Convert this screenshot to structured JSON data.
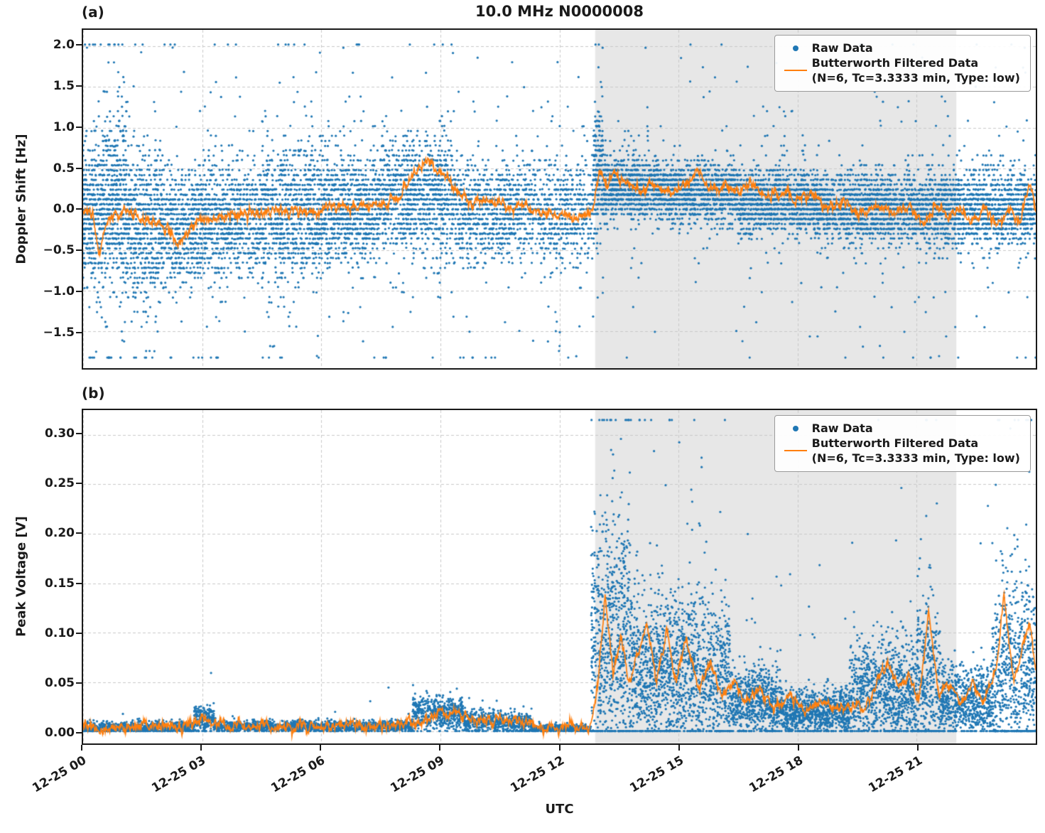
{
  "title": "10.0 MHz N0000008",
  "xlabel": "UTC",
  "panels": [
    {
      "label": "(a)",
      "ylabel": "Doppler Shift [Hz]"
    },
    {
      "label": "(b)",
      "ylabel": "Peak Voltage [V]"
    }
  ],
  "legend": {
    "raw": "Raw Data",
    "filtered1": "Butterworth Filtered Data",
    "filtered2": "(N=6, Tc=3.3333 min, Type: low)"
  },
  "colors": {
    "raw": "#1f77b4",
    "filtered": "#ff7f0e",
    "shade": "#e7e7e7",
    "grid": "#c9c9c9",
    "axis": "#1a1a1a"
  },
  "chart_data": [
    {
      "id": "doppler",
      "type": "scatter",
      "title": "10.0 MHz N0000008",
      "ylabel": "Doppler Shift [Hz]",
      "xlabel": "UTC",
      "x_range_hours": [
        0,
        24
      ],
      "x_tick_hours": [
        0,
        3,
        6,
        9,
        12,
        15,
        18,
        21
      ],
      "x_tick_labels": [
        "12-25 00",
        "12-25 03",
        "12-25 06",
        "12-25 09",
        "12-25 12",
        "12-25 15",
        "12-25 18",
        "12-25 21"
      ],
      "show_x_tick_labels": false,
      "ylim": [
        -1.95,
        2.2
      ],
      "y_ticks": [
        2.0,
        1.5,
        1.0,
        0.5,
        0.0,
        -0.5,
        -1.0,
        -1.5
      ],
      "y_tick_labels": [
        "2.0",
        "1.5",
        "1.0",
        "0.5",
        "0.0",
        "−0.5",
        "−1.0",
        "−1.5"
      ],
      "shaded_region_hours": [
        12.9,
        22.0
      ],
      "grid": true,
      "legend_position": "upper right",
      "seed": 1234567,
      "clamp": [
        -1.82,
        2.02
      ],
      "quantize": 0.06,
      "filtered_jitter": 0.05,
      "raw_segments": [
        {
          "t0": 0.0,
          "t1": 0.5,
          "n": 400,
          "mean": -0.1,
          "std": 0.45,
          "tailP": 0.08,
          "tailScale": 1.0
        },
        {
          "t0": 0.5,
          "t1": 1.1,
          "n": 500,
          "mean": 0.1,
          "std": 0.5,
          "tailP": 0.1,
          "tailScale": 1.0
        },
        {
          "t0": 1.1,
          "t1": 2.0,
          "n": 600,
          "mean": -0.2,
          "std": 0.45,
          "tailP": 0.08,
          "tailScale": 0.9
        },
        {
          "t0": 2.0,
          "t1": 3.0,
          "n": 600,
          "mean": -0.2,
          "std": 0.35,
          "tailP": 0.05,
          "tailScale": 0.8
        },
        {
          "t0": 3.0,
          "t1": 4.5,
          "n": 800,
          "mean": -0.1,
          "std": 0.35,
          "tailP": 0.05,
          "tailScale": 0.7
        },
        {
          "t0": 4.5,
          "t1": 6.0,
          "n": 900,
          "mean": -0.05,
          "std": 0.4,
          "tailP": 0.06,
          "tailScale": 0.8
        },
        {
          "t0": 6.0,
          "t1": 7.5,
          "n": 900,
          "mean": 0.0,
          "std": 0.35,
          "tailP": 0.05,
          "tailScale": 0.7
        },
        {
          "t0": 7.5,
          "t1": 9.3,
          "n": 1000,
          "mean": 0.15,
          "std": 0.35,
          "tailP": 0.05,
          "tailScale": 0.6
        },
        {
          "t0": 9.3,
          "t1": 11.0,
          "n": 800,
          "mean": 0.0,
          "std": 0.3,
          "tailP": 0.06,
          "tailScale": 0.7
        },
        {
          "t0": 11.0,
          "t1": 12.85,
          "n": 700,
          "mean": -0.05,
          "std": 0.3,
          "tailP": 0.06,
          "tailScale": 0.6
        },
        {
          "t0": 12.85,
          "t1": 13.1,
          "n": 220,
          "mean": 0.5,
          "std": 0.4,
          "tailP": 0.1,
          "tailScale": 0.6
        },
        {
          "t0": 13.1,
          "t1": 14.5,
          "n": 900,
          "mean": 0.25,
          "std": 0.18,
          "tailP": 0.04,
          "tailScale": 0.5
        },
        {
          "t0": 14.5,
          "t1": 16.5,
          "n": 1200,
          "mean": 0.2,
          "std": 0.18,
          "tailP": 0.04,
          "tailScale": 0.5
        },
        {
          "t0": 16.5,
          "t1": 18.5,
          "n": 1200,
          "mean": 0.1,
          "std": 0.2,
          "tailP": 0.04,
          "tailScale": 0.5
        },
        {
          "t0": 18.5,
          "t1": 20.5,
          "n": 1200,
          "mean": 0.02,
          "std": 0.2,
          "tailP": 0.04,
          "tailScale": 0.5
        },
        {
          "t0": 20.5,
          "t1": 24.0,
          "n": 2100,
          "mean": 0.0,
          "std": 0.22,
          "tailP": 0.05,
          "tailScale": 0.6
        }
      ],
      "filtered_keypoints": [
        [
          0,
          0.0
        ],
        [
          0.25,
          -0.1
        ],
        [
          0.4,
          -0.55
        ],
        [
          0.6,
          -0.15
        ],
        [
          1.0,
          -0.05
        ],
        [
          1.5,
          -0.1
        ],
        [
          2.0,
          -0.2
        ],
        [
          2.4,
          -0.45
        ],
        [
          2.7,
          -0.25
        ],
        [
          3.0,
          -0.15
        ],
        [
          3.5,
          -0.1
        ],
        [
          4.0,
          -0.05
        ],
        [
          4.5,
          -0.05
        ],
        [
          5.0,
          0.0
        ],
        [
          5.5,
          -0.05
        ],
        [
          6.0,
          0.0
        ],
        [
          6.5,
          0.05
        ],
        [
          7.0,
          0.0
        ],
        [
          7.5,
          0.05
        ],
        [
          8.0,
          0.15
        ],
        [
          8.4,
          0.5
        ],
        [
          8.7,
          0.6
        ],
        [
          9.0,
          0.45
        ],
        [
          9.3,
          0.25
        ],
        [
          9.7,
          0.1
        ],
        [
          10.2,
          0.1
        ],
        [
          10.7,
          0.05
        ],
        [
          11.2,
          0.0
        ],
        [
          11.7,
          -0.05
        ],
        [
          12.2,
          -0.05
        ],
        [
          12.6,
          -0.1
        ],
        [
          12.85,
          0.0
        ],
        [
          13.0,
          0.5
        ],
        [
          13.2,
          0.3
        ],
        [
          13.4,
          0.45
        ],
        [
          13.7,
          0.3
        ],
        [
          14.0,
          0.25
        ],
        [
          14.4,
          0.3
        ],
        [
          14.8,
          0.2
        ],
        [
          15.2,
          0.3
        ],
        [
          15.5,
          0.45
        ],
        [
          15.8,
          0.25
        ],
        [
          16.1,
          0.3
        ],
        [
          16.4,
          0.2
        ],
        [
          16.8,
          0.3
        ],
        [
          17.2,
          0.15
        ],
        [
          17.6,
          0.2
        ],
        [
          18.0,
          0.1
        ],
        [
          18.4,
          0.2
        ],
        [
          18.8,
          0.0
        ],
        [
          19.2,
          0.1
        ],
        [
          19.6,
          -0.1
        ],
        [
          20.0,
          0.1
        ],
        [
          20.4,
          -0.05
        ],
        [
          20.8,
          0.0
        ],
        [
          21.2,
          -0.15
        ],
        [
          21.5,
          0.05
        ],
        [
          21.8,
          -0.1
        ],
        [
          22.1,
          0.0
        ],
        [
          22.4,
          -0.15
        ],
        [
          22.7,
          0.0
        ],
        [
          23.0,
          -0.2
        ],
        [
          23.3,
          -0.05
        ],
        [
          23.6,
          -0.15
        ],
        [
          23.85,
          0.3
        ],
        [
          24,
          0.0
        ]
      ]
    },
    {
      "id": "voltage",
      "type": "scatter",
      "title": "",
      "ylabel": "Peak Voltage [V]",
      "xlabel": "UTC",
      "x_range_hours": [
        0,
        24
      ],
      "x_tick_hours": [
        0,
        3,
        6,
        9,
        12,
        15,
        18,
        21
      ],
      "x_tick_labels": [
        "12-25 00",
        "12-25 03",
        "12-25 06",
        "12-25 09",
        "12-25 12",
        "12-25 15",
        "12-25 18",
        "12-25 21"
      ],
      "show_x_tick_labels": true,
      "ylim": [
        -0.012,
        0.325
      ],
      "y_ticks": [
        0.3,
        0.25,
        0.2,
        0.15,
        0.1,
        0.05,
        0.0
      ],
      "y_tick_labels": [
        "0.30",
        "0.25",
        "0.20",
        "0.15",
        "0.10",
        "0.05",
        "0.00"
      ],
      "shaded_region_hours": [
        12.9,
        22.0
      ],
      "grid": true,
      "legend_position": "upper right",
      "seed": 987654,
      "clamp": [
        0.0005,
        0.315
      ],
      "quantize": 0,
      "filtered_jitter": 0.004,
      "raw_segments": [
        {
          "t0": 0.0,
          "t1": 2.8,
          "n": 900,
          "mean": 0.004,
          "std": 0.003,
          "tailP": 0.01,
          "tailScale": 0.01
        },
        {
          "t0": 2.8,
          "t1": 3.3,
          "n": 200,
          "mean": 0.013,
          "std": 0.007,
          "tailP": 0.02,
          "tailScale": 0.012
        },
        {
          "t0": 3.3,
          "t1": 8.3,
          "n": 1500,
          "mean": 0.005,
          "std": 0.003,
          "tailP": 0.01,
          "tailScale": 0.008
        },
        {
          "t0": 8.3,
          "t1": 9.6,
          "n": 500,
          "mean": 0.018,
          "std": 0.009,
          "tailP": 0.03,
          "tailScale": 0.012
        },
        {
          "t0": 9.6,
          "t1": 10.6,
          "n": 350,
          "mean": 0.01,
          "std": 0.006,
          "tailP": 0.02,
          "tailScale": 0.008
        },
        {
          "t0": 10.6,
          "t1": 11.3,
          "n": 250,
          "mean": 0.008,
          "std": 0.006,
          "tailP": 0.02,
          "tailScale": 0.01
        },
        {
          "t0": 11.3,
          "t1": 12.8,
          "n": 450,
          "mean": 0.003,
          "std": 0.002,
          "tailP": 0.005,
          "tailScale": 0.005
        },
        {
          "t0": 12.8,
          "t1": 13.8,
          "n": 700,
          "mean": 0.09,
          "std": 0.06,
          "tailP": 0.08,
          "tailScale": 0.12
        },
        {
          "t0": 13.8,
          "t1": 16.3,
          "n": 1500,
          "mean": 0.06,
          "std": 0.04,
          "tailP": 0.06,
          "tailScale": 0.1
        },
        {
          "t0": 16.3,
          "t1": 17.6,
          "n": 700,
          "mean": 0.03,
          "std": 0.018,
          "tailP": 0.03,
          "tailScale": 0.05
        },
        {
          "t0": 17.6,
          "t1": 19.3,
          "n": 900,
          "mean": 0.02,
          "std": 0.012,
          "tailP": 0.02,
          "tailScale": 0.04
        },
        {
          "t0": 19.3,
          "t1": 21.0,
          "n": 900,
          "mean": 0.04,
          "std": 0.025,
          "tailP": 0.04,
          "tailScale": 0.07
        },
        {
          "t0": 21.0,
          "t1": 21.6,
          "n": 350,
          "mean": 0.05,
          "std": 0.04,
          "tailP": 0.06,
          "tailScale": 0.1
        },
        {
          "t0": 21.6,
          "t1": 22.9,
          "n": 700,
          "mean": 0.03,
          "std": 0.018,
          "tailP": 0.03,
          "tailScale": 0.05
        },
        {
          "t0": 22.9,
          "t1": 24.0,
          "n": 700,
          "mean": 0.06,
          "std": 0.05,
          "tailP": 0.08,
          "tailScale": 0.13
        }
      ],
      "filtered_keypoints": [
        [
          0,
          0.004
        ],
        [
          1.0,
          0.004
        ],
        [
          2.0,
          0.005
        ],
        [
          2.8,
          0.006
        ],
        [
          3.0,
          0.013
        ],
        [
          3.3,
          0.006
        ],
        [
          4.0,
          0.005
        ],
        [
          5.0,
          0.005
        ],
        [
          6.0,
          0.005
        ],
        [
          7.0,
          0.005
        ],
        [
          8.0,
          0.006
        ],
        [
          8.6,
          0.012
        ],
        [
          9.0,
          0.02
        ],
        [
          9.4,
          0.016
        ],
        [
          9.8,
          0.012
        ],
        [
          10.3,
          0.012
        ],
        [
          10.8,
          0.014
        ],
        [
          11.2,
          0.006
        ],
        [
          11.8,
          0.004
        ],
        [
          12.5,
          0.003
        ],
        [
          12.8,
          0.005
        ],
        [
          13.0,
          0.06
        ],
        [
          13.15,
          0.14
        ],
        [
          13.35,
          0.06
        ],
        [
          13.55,
          0.095
        ],
        [
          13.75,
          0.05
        ],
        [
          14.0,
          0.08
        ],
        [
          14.2,
          0.11
        ],
        [
          14.45,
          0.05
        ],
        [
          14.7,
          0.1
        ],
        [
          14.95,
          0.05
        ],
        [
          15.2,
          0.1
        ],
        [
          15.5,
          0.04
        ],
        [
          15.8,
          0.07
        ],
        [
          16.1,
          0.035
        ],
        [
          16.4,
          0.05
        ],
        [
          16.7,
          0.03
        ],
        [
          17.0,
          0.04
        ],
        [
          17.4,
          0.025
        ],
        [
          17.8,
          0.035
        ],
        [
          18.2,
          0.02
        ],
        [
          18.6,
          0.03
        ],
        [
          19.0,
          0.02
        ],
        [
          19.4,
          0.03
        ],
        [
          19.7,
          0.025
        ],
        [
          20.0,
          0.05
        ],
        [
          20.3,
          0.07
        ],
        [
          20.55,
          0.04
        ],
        [
          20.8,
          0.06
        ],
        [
          21.05,
          0.03
        ],
        [
          21.3,
          0.12
        ],
        [
          21.55,
          0.04
        ],
        [
          21.8,
          0.05
        ],
        [
          22.1,
          0.03
        ],
        [
          22.4,
          0.05
        ],
        [
          22.7,
          0.03
        ],
        [
          23.0,
          0.06
        ],
        [
          23.2,
          0.14
        ],
        [
          23.45,
          0.05
        ],
        [
          23.65,
          0.08
        ],
        [
          23.85,
          0.115
        ],
        [
          24,
          0.06
        ]
      ]
    }
  ]
}
